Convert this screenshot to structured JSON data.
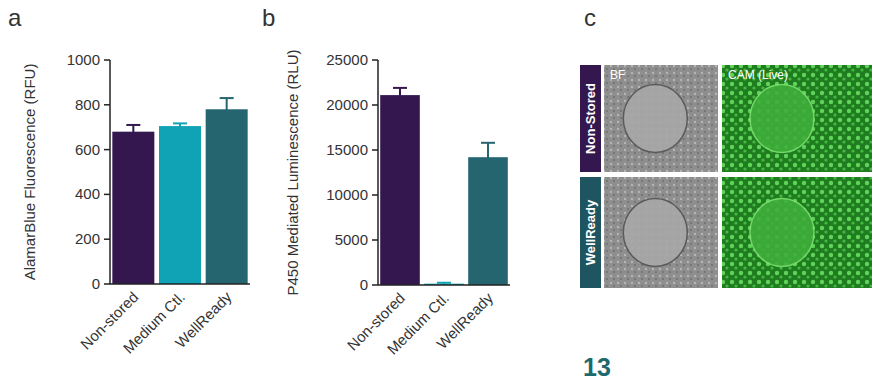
{
  "chart_data": [
    {
      "type": "bar",
      "title": "a",
      "y_label": "AlamarBlue Fluorescence (RFU)",
      "categories": [
        "Non-stored",
        "Medium Ctl.",
        "WellReady"
      ],
      "values": [
        680,
        705,
        780
      ],
      "errors": [
        30,
        12,
        50
      ],
      "colors": [
        "#34174f",
        "#10a3b5",
        "#256570"
      ],
      "ylim": [
        0,
        1000
      ],
      "yticks": [
        0,
        200,
        400,
        600,
        800,
        1000
      ]
    },
    {
      "type": "bar",
      "title": "b",
      "y_label": "P450 Mediated Luminescence (RLU)",
      "categories": [
        "Non-stored",
        "Medium Ctl.",
        "WellReady"
      ],
      "values": [
        21100,
        150,
        14200
      ],
      "errors": [
        800,
        100,
        1600
      ],
      "colors": [
        "#34174f",
        "#10a3b5",
        "#256570"
      ],
      "ylim": [
        0,
        25000
      ],
      "yticks": [
        0,
        5000,
        10000,
        15000,
        20000,
        25000
      ]
    }
  ],
  "image_panel": {
    "title": "c",
    "columns": [
      "BF",
      "CAM (Live)"
    ],
    "rows": [
      "Non-Stored",
      "WellReady"
    ],
    "colors": [
      "#34174f",
      "#1f5560"
    ]
  },
  "page_number": "13"
}
